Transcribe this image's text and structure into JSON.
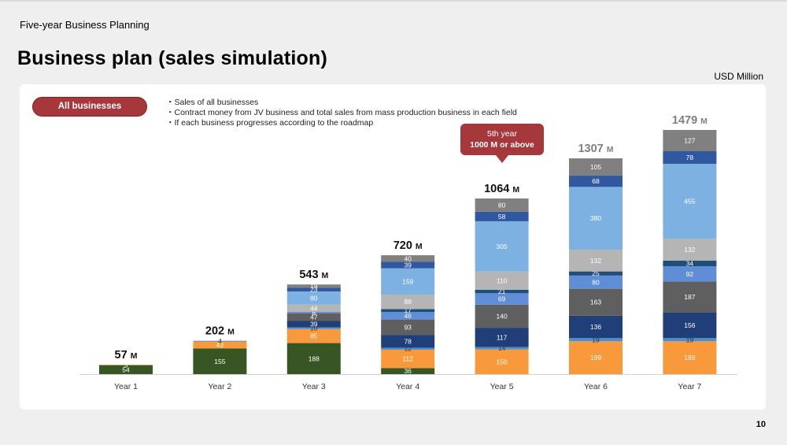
{
  "header": {
    "section_title": "Five-year Business Planning",
    "page_title": "Business plan (sales simulation)",
    "unit": "USD Million"
  },
  "panel": {
    "pill_label": "All businesses",
    "notes": [
      "・Sales of all businesses",
      "・Contract money from JV business and total sales from mass production business in each field",
      "・If each business progresses according to the roadmap"
    ],
    "callout_line1": "5th year",
    "callout_line2": "1000 M or above"
  },
  "page_number": "10",
  "colors": {
    "accent_red": "#a6373a",
    "s1": "#375623",
    "s2": "#f8993b",
    "s3": "#4a90d0",
    "s4": "#203f78",
    "s5": "#5f5f5f",
    "s6": "#5f8ed6",
    "s7": "#1f4e79",
    "s8": "#b5b5b5",
    "s9": "#7db1e2",
    "s10": "#2f58a0",
    "s11": "#808080"
  },
  "chart_data": {
    "type": "bar",
    "stacked": true,
    "categories": [
      "Year 1",
      "Year 2",
      "Year 3",
      "Year 4",
      "Year 5",
      "Year 6",
      "Year 7"
    ],
    "totals": [
      {
        "value": "57",
        "unit": "M"
      },
      {
        "value": "202",
        "unit": "M"
      },
      {
        "value": "543",
        "unit": "M"
      },
      {
        "value": "720",
        "unit": "M"
      },
      {
        "value": "1064",
        "unit": "M"
      },
      {
        "value": "1307",
        "unit": "M"
      },
      {
        "value": "1479",
        "unit": "M"
      }
    ],
    "series": [
      {
        "values": [
          54,
          155,
          188,
          36,
          0,
          0,
          0
        ],
        "color": "#375623"
      },
      {
        "values": [
          3,
          43,
          85,
          112,
          150,
          199,
          199
        ],
        "color": "#f8993b"
      },
      {
        "values": [
          0,
          4,
          10,
          12,
          14,
          19,
          19
        ],
        "color": "#4a90d0"
      },
      {
        "values": [
          0,
          0,
          39,
          78,
          117,
          136,
          156
        ],
        "color": "#203f78"
      },
      {
        "values": [
          0,
          0,
          47,
          93,
          140,
          163,
          187
        ],
        "color": "#5f5f5f"
      },
      {
        "values": [
          0,
          0,
          8,
          46,
          69,
          80,
          92
        ],
        "color": "#5f8ed6"
      },
      {
        "values": [
          0,
          0,
          0,
          17,
          21,
          25,
          34
        ],
        "color": "#1f4e79"
      },
      {
        "values": [
          0,
          0,
          44,
          88,
          110,
          132,
          132
        ],
        "color": "#b5b5b5"
      },
      {
        "values": [
          0,
          0,
          80,
          159,
          305,
          380,
          455
        ],
        "color": "#7db1e2"
      },
      {
        "values": [
          0,
          0,
          23,
          39,
          58,
          68,
          78
        ],
        "color": "#2f58a0"
      },
      {
        "values": [
          0,
          0,
          19,
          40,
          80,
          105,
          127
        ],
        "color": "#808080"
      }
    ],
    "ylim": [
      0,
      1479
    ]
  }
}
